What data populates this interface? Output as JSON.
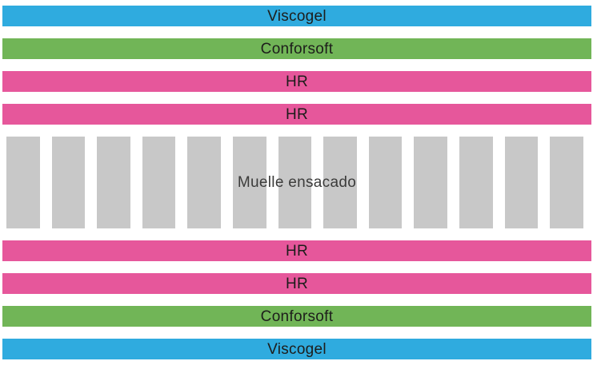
{
  "page": {
    "background": "#ffffff",
    "description_label": "mattress-layers-diagram"
  },
  "colors": {
    "blue": "#2FABDF",
    "green": "#71B557",
    "pink": "#E6579B",
    "gray": "#C8C8C8",
    "band_text": "#1D1D1B",
    "springs_text": "#3C3C3B"
  },
  "layers": [
    {
      "id": "layer-viscogel-top",
      "label": "Viscogel",
      "type": "foam",
      "color_key": "blue"
    },
    {
      "id": "layer-conforsoft-top",
      "label": "Conforsoft",
      "type": "foam",
      "color_key": "green"
    },
    {
      "id": "layer-hr-top-1",
      "label": "HR",
      "type": "foam",
      "color_key": "pink"
    },
    {
      "id": "layer-hr-top-2",
      "label": "HR",
      "type": "foam",
      "color_key": "pink"
    },
    {
      "id": "layer-springs",
      "label": "Muelle ensacado",
      "type": "springs",
      "color_key": "gray",
      "spring_count": 13
    },
    {
      "id": "layer-hr-bottom-1",
      "label": "HR",
      "type": "foam",
      "color_key": "pink"
    },
    {
      "id": "layer-hr-bottom-2",
      "label": "HR",
      "type": "foam",
      "color_key": "pink"
    },
    {
      "id": "layer-conforsoft-bottom",
      "label": "Conforsoft",
      "type": "foam",
      "color_key": "green"
    },
    {
      "id": "layer-viscogel-bottom",
      "label": "Viscogel",
      "type": "foam",
      "color_key": "blue"
    }
  ]
}
